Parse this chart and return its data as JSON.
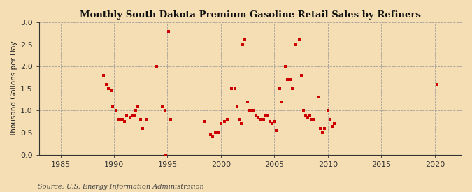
{
  "title": "Monthly South Dakota Premium Gasoline Retail Sales by Refiners",
  "ylabel": "Thousand Gallons per Day",
  "source": "Source: U.S. Energy Information Administration",
  "background_color": "#f5deb3",
  "marker_color": "#cc0000",
  "marker_size": 7,
  "xlim": [
    1983.0,
    2022.5
  ],
  "ylim": [
    0.0,
    3.0
  ],
  "yticks": [
    0.0,
    0.5,
    1.0,
    1.5,
    2.0,
    2.5,
    3.0
  ],
  "xticks": [
    1985,
    1990,
    1995,
    2000,
    2005,
    2010,
    2015,
    2020
  ],
  "data_x": [
    1989.0,
    1989.3,
    1989.5,
    1989.75,
    1989.9,
    1990.2,
    1990.4,
    1990.6,
    1990.8,
    1991.0,
    1991.2,
    1991.5,
    1991.7,
    1991.9,
    1992.0,
    1992.2,
    1992.5,
    1992.7,
    1993.0,
    1994.0,
    1994.5,
    1994.8,
    1994.83,
    1995.1,
    1995.3,
    1998.5,
    1999.0,
    1999.2,
    1999.5,
    1999.8,
    2000.0,
    2000.3,
    2000.6,
    2001.0,
    2001.3,
    2001.5,
    2001.7,
    2001.9,
    2002.0,
    2002.2,
    2002.5,
    2002.7,
    2002.9,
    2003.1,
    2003.3,
    2003.5,
    2003.7,
    2003.9,
    2004.0,
    2004.2,
    2004.4,
    2004.6,
    2004.8,
    2005.0,
    2005.2,
    2005.5,
    2005.7,
    2006.0,
    2006.2,
    2006.5,
    2006.7,
    2007.0,
    2007.3,
    2007.5,
    2007.7,
    2007.9,
    2008.1,
    2008.3,
    2008.5,
    2008.7,
    2009.1,
    2009.3,
    2009.5,
    2009.7,
    2010.0,
    2010.2,
    2010.4,
    2010.6,
    2020.2
  ],
  "data_y": [
    1.8,
    1.6,
    1.5,
    1.45,
    1.1,
    1.0,
    0.8,
    0.8,
    0.8,
    0.75,
    0.9,
    0.85,
    0.9,
    0.9,
    1.0,
    1.1,
    0.8,
    0.6,
    0.8,
    2.0,
    1.1,
    1.0,
    0.0,
    2.8,
    0.8,
    0.75,
    0.45,
    0.4,
    0.5,
    0.5,
    0.7,
    0.75,
    0.8,
    1.5,
    1.5,
    1.1,
    0.8,
    0.7,
    2.5,
    2.6,
    1.2,
    1.0,
    1.0,
    1.0,
    0.9,
    0.85,
    0.8,
    0.8,
    0.8,
    0.9,
    0.9,
    0.75,
    0.7,
    0.75,
    0.55,
    1.5,
    1.2,
    2.0,
    1.7,
    1.7,
    1.5,
    2.5,
    2.6,
    1.8,
    1.0,
    0.9,
    0.85,
    0.9,
    0.8,
    0.8,
    1.3,
    0.6,
    0.5,
    0.6,
    1.0,
    0.8,
    0.65,
    0.7,
    1.6
  ]
}
